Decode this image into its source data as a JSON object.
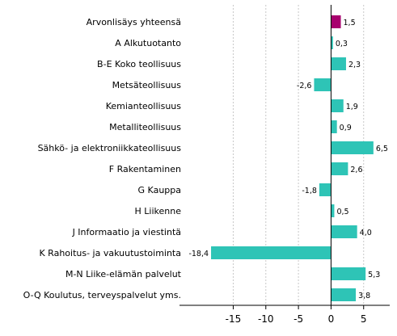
{
  "chart_data": {
    "type": "bar",
    "orientation": "horizontal",
    "categories": [
      "Arvonlisäys yhteensä",
      "A Alkutuotanto",
      "B-E Koko teollisuus",
      "Metsäteollisuus",
      "Kemianteollisuus",
      "Metalliteollisuus",
      "Sähkö- ja elektroniikkateollisuus",
      "F Rakentaminen",
      "G Kauppa",
      "H Liikenne",
      "J Informaatio ja viestintä",
      "K Rahoitus- ja vakuutustoiminta",
      "M-N Liike-elämän palvelut",
      "O-Q Koulutus, terveyspalvelut yms."
    ],
    "values": [
      1.5,
      0.3,
      2.3,
      -2.6,
      1.9,
      0.9,
      6.5,
      2.6,
      -1.8,
      0.5,
      4.0,
      -18.4,
      5.3,
      3.8
    ],
    "value_labels": [
      "1,5",
      "0,3",
      "2,3",
      "-2,6",
      "1,9",
      "0,9",
      "6,5",
      "2,6",
      "-1,8",
      "0,5",
      "4,0",
      "-18,4",
      "5,3",
      "3,8"
    ],
    "colors": [
      "#a8006e",
      "#2ec4b6",
      "#2ec4b6",
      "#2ec4b6",
      "#2ec4b6",
      "#2ec4b6",
      "#2ec4b6",
      "#2ec4b6",
      "#2ec4b6",
      "#2ec4b6",
      "#2ec4b6",
      "#2ec4b6",
      "#2ec4b6",
      "#2ec4b6"
    ],
    "xlim": [
      -22,
      9
    ],
    "xticks": [
      -15,
      -10,
      -5,
      0,
      5
    ],
    "grid": true,
    "title": "",
    "xlabel": "",
    "ylabel": ""
  }
}
